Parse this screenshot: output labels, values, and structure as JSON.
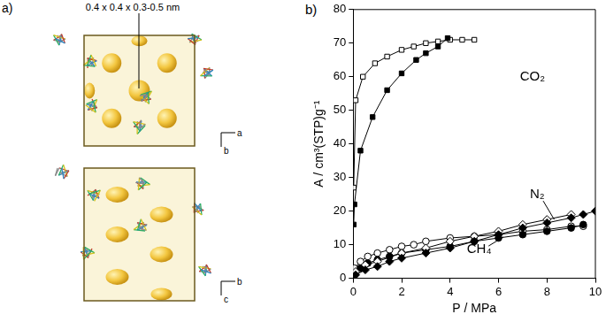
{
  "panels": {
    "a": {
      "label": "a)",
      "annotation": "0.4 x 0.4 x 0.3-0.5 nm",
      "views": [
        {
          "axes": [
            "a",
            "b"
          ]
        },
        {
          "axes": [
            "b",
            "c"
          ]
        }
      ]
    },
    "b": {
      "label": "b)"
    }
  },
  "chart_data": {
    "type": "scatter",
    "x_label": "P / MPa",
    "y_label": "A / cm³(STP)g⁻¹",
    "xlim": [
      0,
      10
    ],
    "xticks": [
      0,
      2,
      4,
      6,
      8,
      10
    ],
    "ylim": [
      0,
      80
    ],
    "yticks": [
      0,
      10,
      20,
      30,
      40,
      50,
      60,
      70,
      80
    ],
    "grid": false,
    "line_style": "solid",
    "series": [
      {
        "name": "CO₂",
        "color": "#000000",
        "marker": "square",
        "x": [
          0.02,
          0.05,
          0.3,
          0.8,
          1.4,
          2.0,
          2.6,
          3.0,
          3.5,
          3.9
        ],
        "values": [
          16,
          22,
          38,
          48,
          56,
          61,
          65,
          67,
          69,
          71.5
        ]
      },
      {
        "name": "CO₂",
        "color": "#000000",
        "marker": "square-open",
        "x": [
          0.02,
          0.1,
          0.4,
          0.9,
          1.4,
          2.0,
          2.5,
          3.0,
          3.5,
          4.0,
          4.5,
          5.0
        ],
        "values": [
          27,
          53,
          60,
          64,
          66,
          68,
          69,
          70,
          70.5,
          71,
          71,
          71
        ]
      },
      {
        "name": "N₂",
        "color": "#000000",
        "marker": "diamond",
        "x": [
          0.1,
          0.5,
          1.0,
          1.5,
          2.0,
          3.0,
          4.0,
          5.0,
          6.0,
          7.0,
          8.0,
          9.0,
          9.5,
          10.0
        ],
        "values": [
          1,
          2.5,
          3.5,
          5,
          6,
          7.5,
          9,
          11,
          13,
          15,
          16.5,
          18,
          19,
          20
        ]
      },
      {
        "name": "N₂",
        "color": "#000000",
        "marker": "diamond-open",
        "x": [
          0.1,
          0.5,
          1.0,
          2.0,
          3.0,
          4.0,
          5.0,
          6.0,
          7.0,
          8.0,
          9.0
        ],
        "values": [
          2,
          4,
          5,
          7.5,
          9,
          11,
          12.5,
          14,
          16,
          17.5,
          19
        ]
      },
      {
        "name": "CH₄",
        "color": "#000000",
        "marker": "circle",
        "x": [
          0.05,
          0.3,
          0.6,
          1.0,
          1.5,
          2.0,
          3.0,
          4.0,
          5.0,
          6.0,
          7.0,
          8.0,
          9.0,
          9.5
        ],
        "values": [
          1,
          3,
          4.5,
          5.5,
          6.5,
          7.5,
          8.5,
          9.5,
          11,
          12,
          13,
          14,
          15,
          16
        ]
      },
      {
        "name": "CH₄",
        "color": "#000000",
        "marker": "circle-open",
        "x": [
          0.05,
          0.3,
          0.6,
          1.0,
          1.5,
          2.0,
          2.5,
          3.0,
          4.0,
          5.0,
          6.0,
          7.0,
          8.0,
          9.0,
          9.5
        ],
        "values": [
          3,
          5,
          6.5,
          7.5,
          8.5,
          9.5,
          10,
          11,
          12,
          12.5,
          13,
          14,
          14.5,
          15.5,
          15.5
        ]
      }
    ],
    "annotations": [
      {
        "text": "CO₂",
        "x": 7.4,
        "y": 60
      },
      {
        "text": "N₂",
        "x": 7.6,
        "y": 25,
        "arrow_to": [
          8.3,
          17.5
        ]
      },
      {
        "text": "CH₄",
        "x": 5.2,
        "y": 8.5,
        "arrow_to": [
          6.2,
          12.3
        ]
      }
    ]
  }
}
